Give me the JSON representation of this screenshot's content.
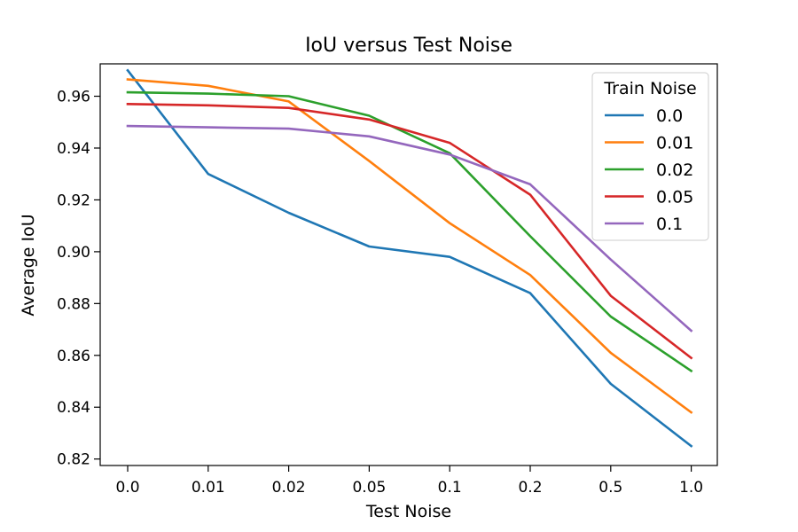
{
  "chart_data": {
    "type": "line",
    "title": "IoU versus Test Noise",
    "xlabel": "Test Noise",
    "ylabel": "Average IoU",
    "categories": [
      "0.0",
      "0.01",
      "0.02",
      "0.05",
      "0.1",
      "0.2",
      "0.5",
      "1.0"
    ],
    "yticks": [
      "0.82",
      "0.84",
      "0.86",
      "0.88",
      "0.90",
      "0.92",
      "0.94",
      "0.96"
    ],
    "ylim": [
      0.8175,
      0.9725
    ],
    "grid": false,
    "legend": {
      "title": "Train Noise",
      "placement": "top-right"
    },
    "series": [
      {
        "name": "0.0",
        "color": "#1f77b4",
        "values": [
          0.97,
          0.93,
          0.915,
          0.902,
          0.898,
          0.884,
          0.849,
          0.825
        ]
      },
      {
        "name": "0.01",
        "color": "#ff7f0e",
        "values": [
          0.9665,
          0.964,
          0.958,
          0.935,
          0.911,
          0.891,
          0.861,
          0.838
        ]
      },
      {
        "name": "0.02",
        "color": "#2ca02c",
        "values": [
          0.9615,
          0.961,
          0.96,
          0.9525,
          0.938,
          0.906,
          0.875,
          0.854
        ]
      },
      {
        "name": "0.05",
        "color": "#d62728",
        "values": [
          0.957,
          0.9565,
          0.9555,
          0.951,
          0.942,
          0.922,
          0.883,
          0.859
        ]
      },
      {
        "name": "0.1",
        "color": "#9467bd",
        "values": [
          0.9485,
          0.948,
          0.9475,
          0.9445,
          0.9375,
          0.926,
          0.897,
          0.8695
        ]
      }
    ]
  }
}
